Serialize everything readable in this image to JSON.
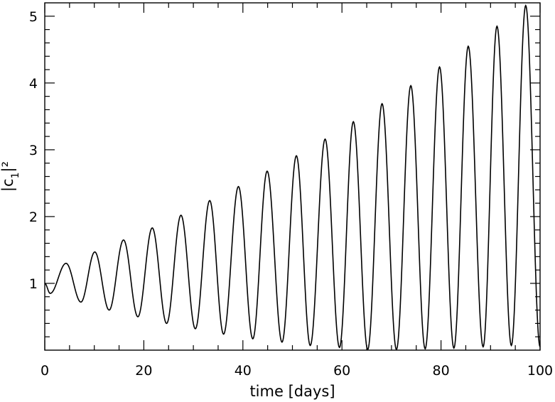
{
  "chart_data": {
    "type": "line",
    "title": "",
    "xlabel": "time [days]",
    "ylabel": "|c",
    "ylabel_subscript": "1",
    "ylabel_suffix": "|²",
    "xlim": [
      0,
      100
    ],
    "ylim": [
      0,
      5.2
    ],
    "grid": false,
    "x_ticks": [
      {
        "value": 0,
        "label": "0"
      },
      {
        "value": 20,
        "label": "20"
      },
      {
        "value": 40,
        "label": "40"
      },
      {
        "value": 60,
        "label": "60"
      },
      {
        "value": 80,
        "label": "80"
      },
      {
        "value": 100,
        "label": "100"
      }
    ],
    "y_ticks": [
      {
        "value": 1,
        "label": "1"
      },
      {
        "value": 2,
        "label": "2"
      },
      {
        "value": 3,
        "label": "3"
      },
      {
        "value": 4,
        "label": "4"
      },
      {
        "value": 5,
        "label": "5"
      }
    ],
    "x_minor_step": 5,
    "y_minor_step": 0.2,
    "series": [
      {
        "color": "#000000",
        "x": [
          0,
          1.1,
          4.3,
          7.3,
          10.1,
          13.0,
          15.9,
          18.8,
          21.7,
          24.6,
          27.5,
          30.4,
          33.3,
          36.1,
          39.1,
          42.0,
          44.9,
          47.9,
          50.8,
          53.6,
          56.6,
          59.5,
          62.3,
          65.2,
          68.1,
          71.0,
          73.9,
          76.8,
          79.7,
          82.6,
          85.5,
          88.5,
          91.3,
          94.2,
          97.1,
          100
        ],
        "y": [
          1.0,
          0.85,
          1.3,
          0.72,
          1.47,
          0.6,
          1.65,
          0.5,
          1.83,
          0.4,
          2.02,
          0.32,
          2.24,
          0.24,
          2.45,
          0.17,
          2.68,
          0.12,
          2.91,
          0.07,
          3.16,
          0.04,
          3.42,
          0.01,
          3.69,
          0.01,
          3.96,
          0.02,
          4.24,
          0.03,
          4.55,
          0.05,
          4.85,
          0.07,
          5.16,
          0.05
        ]
      }
    ]
  }
}
